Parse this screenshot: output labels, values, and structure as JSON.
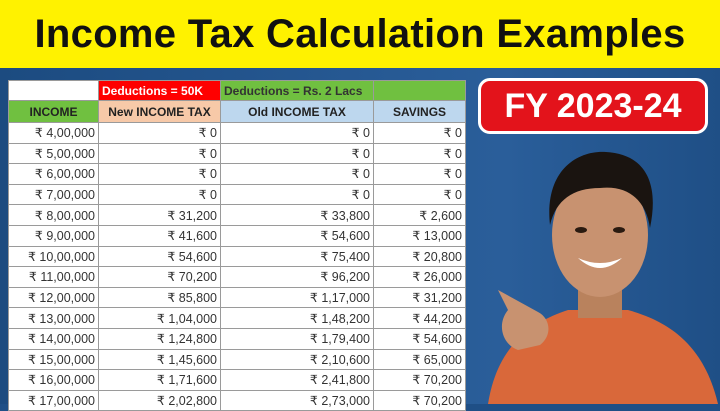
{
  "title": "Income Tax Calculation Examples",
  "badge": "FY 2023-24",
  "colors": {
    "banner": "#fff200",
    "background": "#1f4f86",
    "badge": "#e3131b",
    "new_header": "#f7c9a8",
    "old_header": "#bdd7ee",
    "income_header": "#70c040"
  },
  "table": {
    "group_headers": [
      "",
      "Deductions = 50K",
      "Deductions = Rs. 2 Lacs",
      ""
    ],
    "headers": [
      "INCOME",
      "New INCOME TAX",
      "Old INCOME TAX",
      "SAVINGS"
    ],
    "rows": [
      [
        "₹ 4,00,000",
        "₹ 0",
        "₹ 0",
        "₹ 0"
      ],
      [
        "₹ 5,00,000",
        "₹ 0",
        "₹ 0",
        "₹ 0"
      ],
      [
        "₹ 6,00,000",
        "₹ 0",
        "₹ 0",
        "₹ 0"
      ],
      [
        "₹ 7,00,000",
        "₹ 0",
        "₹ 0",
        "₹ 0"
      ],
      [
        "₹ 8,00,000",
        "₹ 31,200",
        "₹ 33,800",
        "₹ 2,600"
      ],
      [
        "₹ 9,00,000",
        "₹ 41,600",
        "₹ 54,600",
        "₹ 13,000"
      ],
      [
        "₹ 10,00,000",
        "₹ 54,600",
        "₹ 75,400",
        "₹ 20,800"
      ],
      [
        "₹ 11,00,000",
        "₹ 70,200",
        "₹ 96,200",
        "₹ 26,000"
      ],
      [
        "₹ 12,00,000",
        "₹ 85,800",
        "₹ 1,17,000",
        "₹ 31,200"
      ],
      [
        "₹ 13,00,000",
        "₹ 1,04,000",
        "₹ 1,48,200",
        "₹ 44,200"
      ],
      [
        "₹ 14,00,000",
        "₹ 1,24,800",
        "₹ 1,79,400",
        "₹ 54,600"
      ],
      [
        "₹ 15,00,000",
        "₹ 1,45,600",
        "₹ 2,10,600",
        "₹ 65,000"
      ],
      [
        "₹ 16,00,000",
        "₹ 1,71,600",
        "₹ 2,41,800",
        "₹ 70,200"
      ],
      [
        "₹ 17,00,000",
        "₹ 2,02,800",
        "₹ 2,73,000",
        "₹ 70,200"
      ]
    ]
  }
}
